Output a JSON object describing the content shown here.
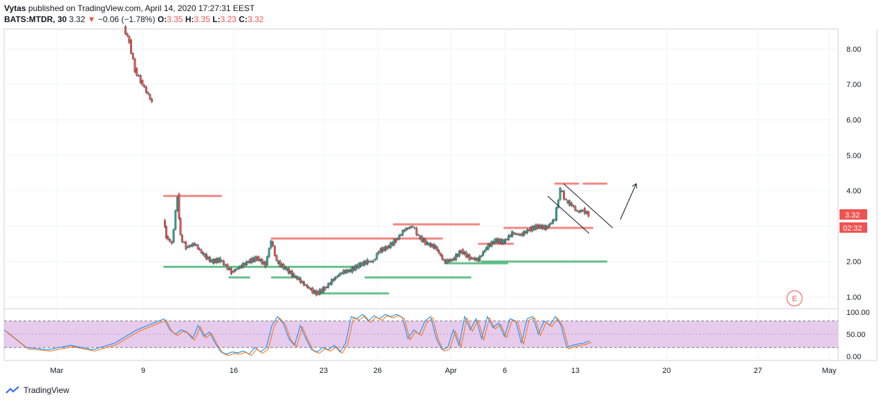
{
  "header": {
    "author": "Vytas",
    "published_text": "published on TradingView.com, April 14, 2020 17:27:31 EEST",
    "symbol": "BATS:MTDR, 30",
    "last": "3.32",
    "change_arrow": "▼",
    "change": "−0.06 (−1.78%)",
    "o_label": "O:",
    "o": "3.35",
    "h_label": "H:",
    "h": "3.35",
    "l_label": "L:",
    "l": "3.23",
    "c_label": "C:",
    "c": "3.32"
  },
  "price_axis": {
    "ticks": [
      "8.00",
      "7.00",
      "6.00",
      "5.00",
      "4.00",
      "3.00",
      "2.00",
      "1.00"
    ],
    "last_price_tag": "3.32",
    "countdown_tag": "02:32",
    "tag_color": "#ef5350"
  },
  "rsi_axis": {
    "ticks": [
      "100.00",
      "50.00",
      "0.00"
    ]
  },
  "time_axis": {
    "labels": [
      "Mar",
      "9",
      "16",
      "23",
      "26",
      "Apr",
      "6",
      "13",
      "20",
      "27",
      "May"
    ]
  },
  "earnings_marker": "E",
  "brand": "TradingView",
  "colors": {
    "up": "#26a69a",
    "down": "#ef5350",
    "res_line": "#ef5350",
    "sup_line": "#26a65b",
    "rsi_band": "#e1bee7"
  },
  "chart_data": {
    "type": "candlestick",
    "symbol": "BATS:MTDR",
    "interval": "30",
    "ylim": [
      0.7,
      8.6
    ],
    "price_path": [
      [
        0,
        8.6
      ],
      [
        2,
        8.2
      ],
      [
        4,
        7.4
      ],
      [
        6,
        7.1
      ],
      [
        8,
        6.8
      ],
      [
        10,
        6.5
      ],
      [
        12,
        null
      ],
      [
        14,
        3.2
      ],
      [
        15,
        2.7
      ],
      [
        17,
        2.5
      ],
      [
        19,
        3.85
      ],
      [
        20,
        2.7
      ],
      [
        22,
        2.4
      ],
      [
        25,
        2.5
      ],
      [
        28,
        2.2
      ],
      [
        31,
        2.0
      ],
      [
        34,
        2.05
      ],
      [
        38,
        1.7
      ],
      [
        41,
        1.85
      ],
      [
        44,
        2.0
      ],
      [
        47,
        2.1
      ],
      [
        50,
        1.9
      ],
      [
        52,
        2.6
      ],
      [
        54,
        2.0
      ],
      [
        57,
        1.8
      ],
      [
        60,
        1.6
      ],
      [
        63,
        1.4
      ],
      [
        66,
        1.2
      ],
      [
        68,
        1.1
      ],
      [
        71,
        1.25
      ],
      [
        74,
        1.5
      ],
      [
        77,
        1.7
      ],
      [
        80,
        1.75
      ],
      [
        83,
        1.9
      ],
      [
        86,
        2.0
      ],
      [
        88,
        2.0
      ],
      [
        90,
        2.3
      ],
      [
        93,
        2.4
      ],
      [
        96,
        2.6
      ],
      [
        99,
        2.9
      ],
      [
        102,
        3.0
      ],
      [
        104,
        2.7
      ],
      [
        107,
        2.5
      ],
      [
        110,
        2.4
      ],
      [
        113,
        2.0
      ],
      [
        116,
        2.05
      ],
      [
        119,
        2.3
      ],
      [
        122,
        2.1
      ],
      [
        125,
        2.05
      ],
      [
        128,
        2.4
      ],
      [
        131,
        2.6
      ],
      [
        134,
        2.55
      ],
      [
        137,
        2.8
      ],
      [
        140,
        2.75
      ],
      [
        143,
        2.9
      ],
      [
        146,
        3.0
      ],
      [
        149,
        2.95
      ],
      [
        152,
        3.2
      ],
      [
        154,
        4.05
      ],
      [
        156,
        3.7
      ],
      [
        158,
        3.6
      ],
      [
        160,
        3.4
      ],
      [
        162,
        3.45
      ],
      [
        164,
        3.32
      ]
    ],
    "horizontal_levels": [
      {
        "price": 3.85,
        "from": 14,
        "to": 34,
        "color": "res"
      },
      {
        "price": 2.65,
        "from": 52,
        "to": 112,
        "color": "res"
      },
      {
        "price": 3.05,
        "from": 95,
        "to": 125,
        "color": "res"
      },
      {
        "price": 2.5,
        "from": 125,
        "to": 137,
        "color": "res"
      },
      {
        "price": 2.95,
        "from": 134,
        "to": 165,
        "color": "res"
      },
      {
        "price": 4.2,
        "from": 152,
        "to": 160,
        "color": "res"
      },
      {
        "price": 4.2,
        "from": 162,
        "to": 170,
        "color": "res"
      },
      {
        "price": 1.85,
        "from": 14,
        "to": 82,
        "color": "sup"
      },
      {
        "price": 1.55,
        "from": 37,
        "to": 44,
        "color": "sup"
      },
      {
        "price": 1.55,
        "from": 52,
        "to": 62,
        "color": "sup"
      },
      {
        "price": 1.1,
        "from": 67,
        "to": 93,
        "color": "sup"
      },
      {
        "price": 1.55,
        "from": 85,
        "to": 122,
        "color": "sup"
      },
      {
        "price": 1.95,
        "from": 113,
        "to": 135,
        "color": "sup"
      },
      {
        "price": 2.0,
        "from": 126,
        "to": 170,
        "color": "sup"
      }
    ],
    "rsi": [
      [
        0,
        60
      ],
      [
        2,
        20
      ],
      [
        4,
        15
      ],
      [
        6,
        25
      ],
      [
        8,
        15
      ],
      [
        10,
        30
      ],
      [
        12,
        60
      ],
      [
        14,
        85
      ],
      [
        16,
        60
      ],
      [
        18,
        50
      ],
      [
        20,
        60
      ],
      [
        22,
        55
      ],
      [
        24,
        40
      ],
      [
        26,
        70
      ],
      [
        28,
        45
      ],
      [
        30,
        55
      ],
      [
        32,
        30
      ],
      [
        34,
        10
      ],
      [
        36,
        5
      ],
      [
        38,
        10
      ],
      [
        40,
        8
      ],
      [
        42,
        12
      ],
      [
        44,
        5
      ],
      [
        46,
        20
      ],
      [
        48,
        10
      ],
      [
        50,
        20
      ],
      [
        52,
        70
      ],
      [
        54,
        90
      ],
      [
        56,
        75
      ],
      [
        58,
        40
      ],
      [
        60,
        25
      ],
      [
        62,
        70
      ],
      [
        64,
        40
      ],
      [
        66,
        15
      ],
      [
        68,
        10
      ],
      [
        70,
        20
      ],
      [
        72,
        15
      ],
      [
        74,
        25
      ],
      [
        76,
        10
      ],
      [
        78,
        30
      ],
      [
        80,
        90
      ],
      [
        82,
        85
      ],
      [
        84,
        95
      ],
      [
        86,
        80
      ],
      [
        88,
        92
      ],
      [
        90,
        85
      ],
      [
        92,
        95
      ],
      [
        94,
        90
      ],
      [
        96,
        95
      ],
      [
        98,
        88
      ],
      [
        100,
        40
      ],
      [
        102,
        60
      ],
      [
        104,
        50
      ],
      [
        106,
        80
      ],
      [
        108,
        90
      ],
      [
        110,
        40
      ],
      [
        112,
        15
      ],
      [
        114,
        20
      ],
      [
        116,
        60
      ],
      [
        118,
        25
      ],
      [
        120,
        90
      ],
      [
        122,
        60
      ],
      [
        124,
        85
      ],
      [
        126,
        40
      ],
      [
        128,
        90
      ],
      [
        130,
        65
      ],
      [
        132,
        75
      ],
      [
        134,
        45
      ],
      [
        136,
        85
      ],
      [
        138,
        80
      ],
      [
        140,
        30
      ],
      [
        142,
        85
      ],
      [
        144,
        90
      ],
      [
        146,
        50
      ],
      [
        148,
        80
      ],
      [
        150,
        70
      ],
      [
        152,
        90
      ],
      [
        154,
        70
      ],
      [
        156,
        20
      ],
      [
        158,
        25
      ],
      [
        160,
        28
      ],
      [
        162,
        30
      ],
      [
        164,
        35
      ]
    ]
  }
}
